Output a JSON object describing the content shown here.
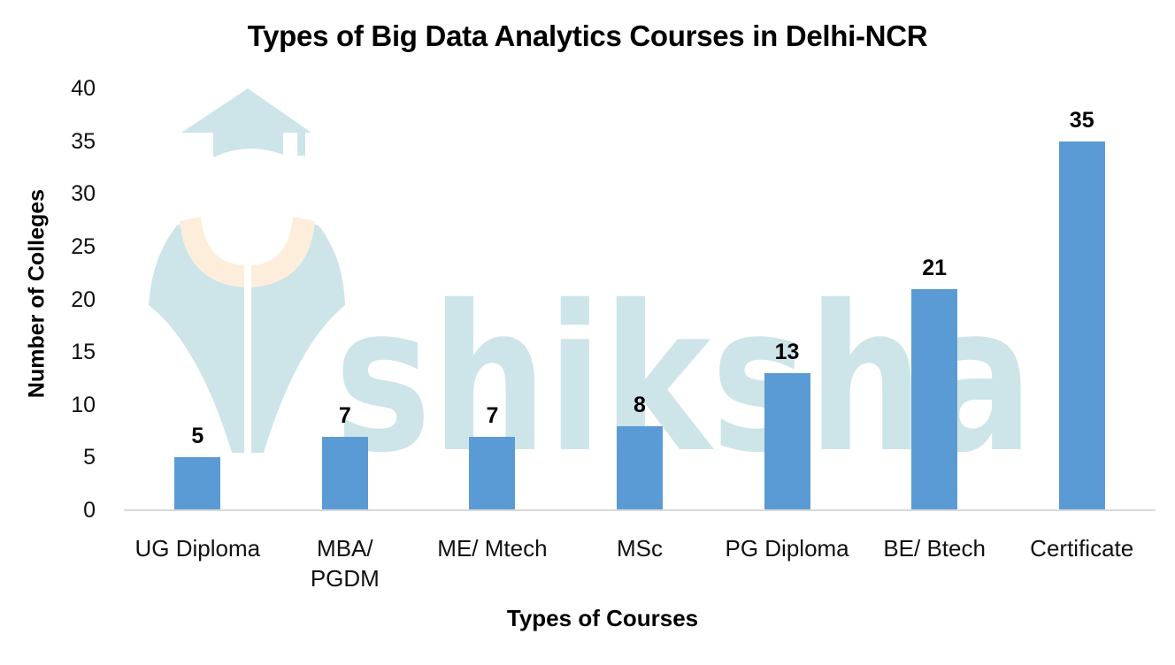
{
  "chart_data": {
    "type": "bar",
    "title": "Types of Big Data Analytics Courses in Delhi-NCR",
    "xlabel": "Types of Courses",
    "ylabel": "Number of Colleges",
    "categories": [
      "UG Diploma",
      "MBA/ PGDM",
      "ME/ Mtech",
      "MSc",
      "PG Diploma",
      "BE/ Btech",
      "Certificate"
    ],
    "values": [
      5,
      7,
      7,
      8,
      13,
      21,
      35
    ],
    "ylim": [
      0,
      40
    ],
    "yticks": [
      0,
      5,
      10,
      15,
      20,
      25,
      30,
      35,
      40
    ],
    "grid": false,
    "legend": null,
    "data_labels": true,
    "bar_color": "#5B9BD5"
  },
  "x_tick_lines": [
    [
      "UG Diploma"
    ],
    [
      "MBA/",
      "PGDM"
    ],
    [
      "ME/ Mtech"
    ],
    [
      "MSc"
    ],
    [
      "PG Diploma"
    ],
    [
      "BE/ Btech"
    ],
    [
      "Certificate"
    ]
  ],
  "watermark": {
    "text": "shiksha",
    "icon": "graduate-logo-icon",
    "color": "#CDE5E8",
    "accent_color": "#FDEEDC"
  }
}
